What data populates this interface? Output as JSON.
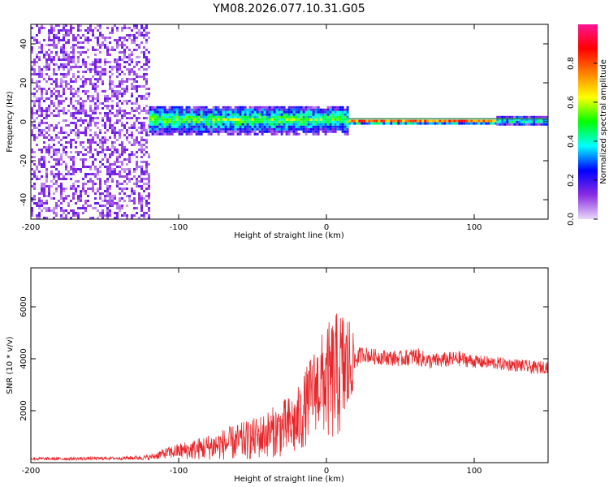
{
  "title": "YM08.2026.077.10.31.G05",
  "chart_data": [
    {
      "type": "heatmap",
      "name": "spectrogram",
      "xlabel": "Height of straight line (km)",
      "ylabel": "Frequency (Hz)",
      "xlim": [
        -200,
        150
      ],
      "ylim": [
        -50,
        50
      ],
      "xticks": [
        -200,
        -100,
        0,
        100
      ],
      "xtick_labels": [
        "-200",
        "-100",
        "0",
        "100"
      ],
      "yticks": [
        -40,
        -20,
        0,
        20,
        40
      ],
      "ytick_labels": [
        "-40",
        "-20",
        "0",
        "20",
        "40"
      ],
      "colorbar": {
        "label": "Normalized spectral amplitude",
        "range": [
          0,
          1
        ],
        "ticks": [
          0.0,
          0.2,
          0.4,
          0.6,
          0.8
        ],
        "tick_labels": [
          "0.0",
          "0.2",
          "0.4",
          "0.6",
          "0.8"
        ],
        "stops": [
          "#e8d8f8",
          "#8a2be2",
          "#0000ff",
          "#00ffff",
          "#00ff00",
          "#ffff00",
          "#ff8000",
          "#ff0000",
          "#ff1493"
        ]
      },
      "regions": [
        {
          "x": [
            -200,
            -120
          ],
          "freq": [
            -50,
            50
          ],
          "amplitude": 0.08,
          "description": "broadband noise"
        },
        {
          "x": [
            -120,
            15
          ],
          "freq": [
            -6,
            8
          ],
          "amplitude": 0.45,
          "description": "band near 0 Hz"
        },
        {
          "x": [
            15,
            115
          ],
          "freq": [
            -1,
            1
          ],
          "amplitude": 0.95,
          "description": "narrow carrier"
        },
        {
          "x": [
            115,
            150
          ],
          "freq": [
            -2,
            3
          ],
          "amplitude": 0.4,
          "description": "carrier broadening"
        }
      ],
      "reference_line": {
        "freq": 1.5,
        "x": [
          15,
          150
        ],
        "color": "#2e8b57"
      }
    },
    {
      "type": "line",
      "name": "snr",
      "xlabel": "Height of straight line (km)",
      "ylabel": "SNR (10 * v/v)",
      "xlim": [
        -200,
        150
      ],
      "ylim": [
        0,
        7500
      ],
      "xticks": [
        -200,
        -100,
        0,
        100
      ],
      "xtick_labels": [
        "-200",
        "-100",
        "0",
        "100"
      ],
      "yticks": [
        2000,
        4000,
        6000
      ],
      "ytick_labels": [
        "2000",
        "4000",
        "6000"
      ],
      "color": "#e8262a",
      "series": [
        {
          "name": "SNR",
          "x": [
            -200,
            -180,
            -160,
            -140,
            -120,
            -110,
            -100,
            -90,
            -80,
            -70,
            -60,
            -50,
            -40,
            -30,
            -20,
            -15,
            -10,
            -5,
            0,
            5,
            10,
            15,
            20,
            25,
            30,
            40,
            50,
            60,
            70,
            80,
            90,
            100,
            110,
            120,
            130,
            140,
            150
          ],
          "y": [
            150,
            150,
            160,
            170,
            200,
            350,
            450,
            500,
            600,
            700,
            800,
            900,
            1100,
            1300,
            1500,
            2000,
            2700,
            3000,
            3100,
            3200,
            3500,
            3700,
            4000,
            4200,
            4100,
            4050,
            4000,
            4100,
            3900,
            3950,
            4000,
            3900,
            3850,
            3800,
            3750,
            3650,
            3700
          ],
          "amplitude": [
            60,
            60,
            60,
            60,
            100,
            200,
            300,
            400,
            500,
            600,
            700,
            800,
            900,
            1100,
            1300,
            1500,
            1500,
            1800,
            2200,
            2500,
            2500,
            2200,
            400,
            300,
            300,
            300,
            300,
            350,
            300,
            300,
            300,
            250,
            250,
            250,
            250,
            250,
            250
          ]
        }
      ]
    }
  ]
}
